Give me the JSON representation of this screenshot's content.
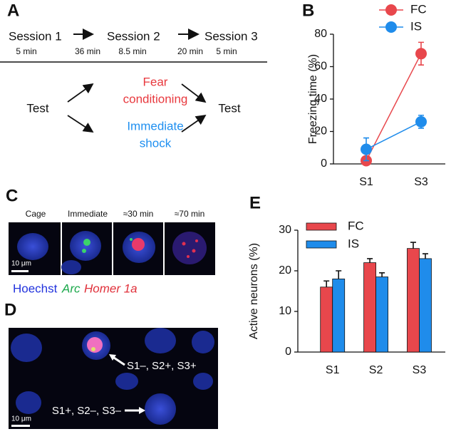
{
  "chart_data": [
    {
      "type": "line",
      "panel": "B",
      "ylabel": "Freezing time (%)",
      "categories": [
        "S1",
        "S3"
      ],
      "series": [
        {
          "name": "FC",
          "color": "#e8474c",
          "values": [
            2,
            68
          ],
          "errors": [
            1,
            7
          ]
        },
        {
          "name": "IS",
          "color": "#1f8ceb",
          "values": [
            9,
            26
          ],
          "errors": [
            7,
            4
          ]
        }
      ],
      "ylim": [
        0,
        80
      ],
      "yticks": [
        0,
        20,
        40,
        60,
        80
      ]
    },
    {
      "type": "bar",
      "panel": "E",
      "ylabel": "Active neurons (%)",
      "categories": [
        "S1",
        "S2",
        "S3"
      ],
      "series": [
        {
          "name": "FC",
          "color": "#e8474c",
          "values": [
            16,
            22,
            25.5
          ],
          "errors": [
            1.5,
            1,
            1.5
          ]
        },
        {
          "name": "IS",
          "color": "#1f8ceb",
          "values": [
            18,
            18.5,
            23
          ],
          "errors": [
            2,
            1,
            1.2
          ]
        }
      ],
      "ylim": [
        0,
        30
      ],
      "yticks": [
        0,
        10,
        20,
        30
      ]
    }
  ],
  "panel_a": {
    "letter": "A",
    "sessions": [
      "Session 1",
      "Session 2",
      "Session 3"
    ],
    "durations": [
      "5 min",
      "8.5 min",
      "5 min"
    ],
    "intervals": [
      "36 min",
      "20 min"
    ],
    "test_before": "Test",
    "fear": [
      "Fear",
      "conditioning"
    ],
    "shock": [
      "Immediate",
      "shock"
    ],
    "test_after": "Test"
  },
  "panel_c": {
    "letter": "C",
    "columns": [
      "Cage",
      "Immediate",
      "≈30 min",
      "≈70 min"
    ],
    "scale_bar": "10 μm",
    "stains": [
      "Hoechst",
      "Arc",
      "Homer 1a"
    ]
  },
  "panel_d": {
    "letter": "D",
    "annotations": [
      "S1–, S2+, S3+",
      "S1+, S2–, S3–"
    ],
    "scale_bar": "10 μm"
  }
}
